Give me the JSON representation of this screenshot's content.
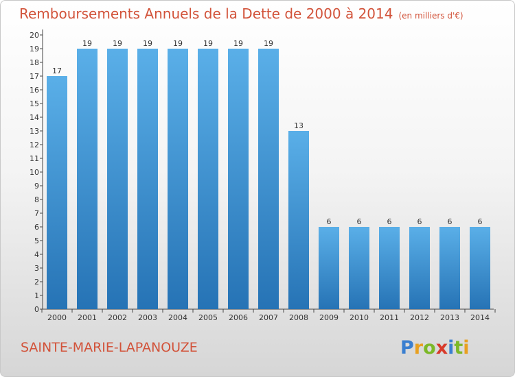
{
  "title": "Remboursements Annuels de la Dette de 2000 à 2014",
  "unit": "(en milliers d'€)",
  "commune": "SAINTE-MARIE-LAPANOUZE",
  "logo_text": "Proxiti",
  "colors": {
    "title": "#d2533a",
    "bar_top": "#5aafe8",
    "bar_bottom": "#2673b5"
  },
  "chart_data": {
    "type": "bar",
    "title": "Remboursements Annuels de la Dette de 2000 à 2014",
    "categories": [
      "2000",
      "2001",
      "2002",
      "2003",
      "2004",
      "2005",
      "2006",
      "2007",
      "2008",
      "2009",
      "2010",
      "2011",
      "2012",
      "2013",
      "2014"
    ],
    "values": [
      17,
      19,
      19,
      19,
      19,
      19,
      19,
      19,
      13,
      6,
      6,
      6,
      6,
      6,
      6
    ],
    "y_ticks": [
      0,
      1,
      2,
      3,
      4,
      5,
      6,
      7,
      8,
      9,
      10,
      11,
      12,
      13,
      14,
      15,
      16,
      17,
      18,
      19,
      20
    ],
    "ylim": [
      0,
      20
    ],
    "grid": false,
    "xlabel": "",
    "ylabel": ""
  }
}
